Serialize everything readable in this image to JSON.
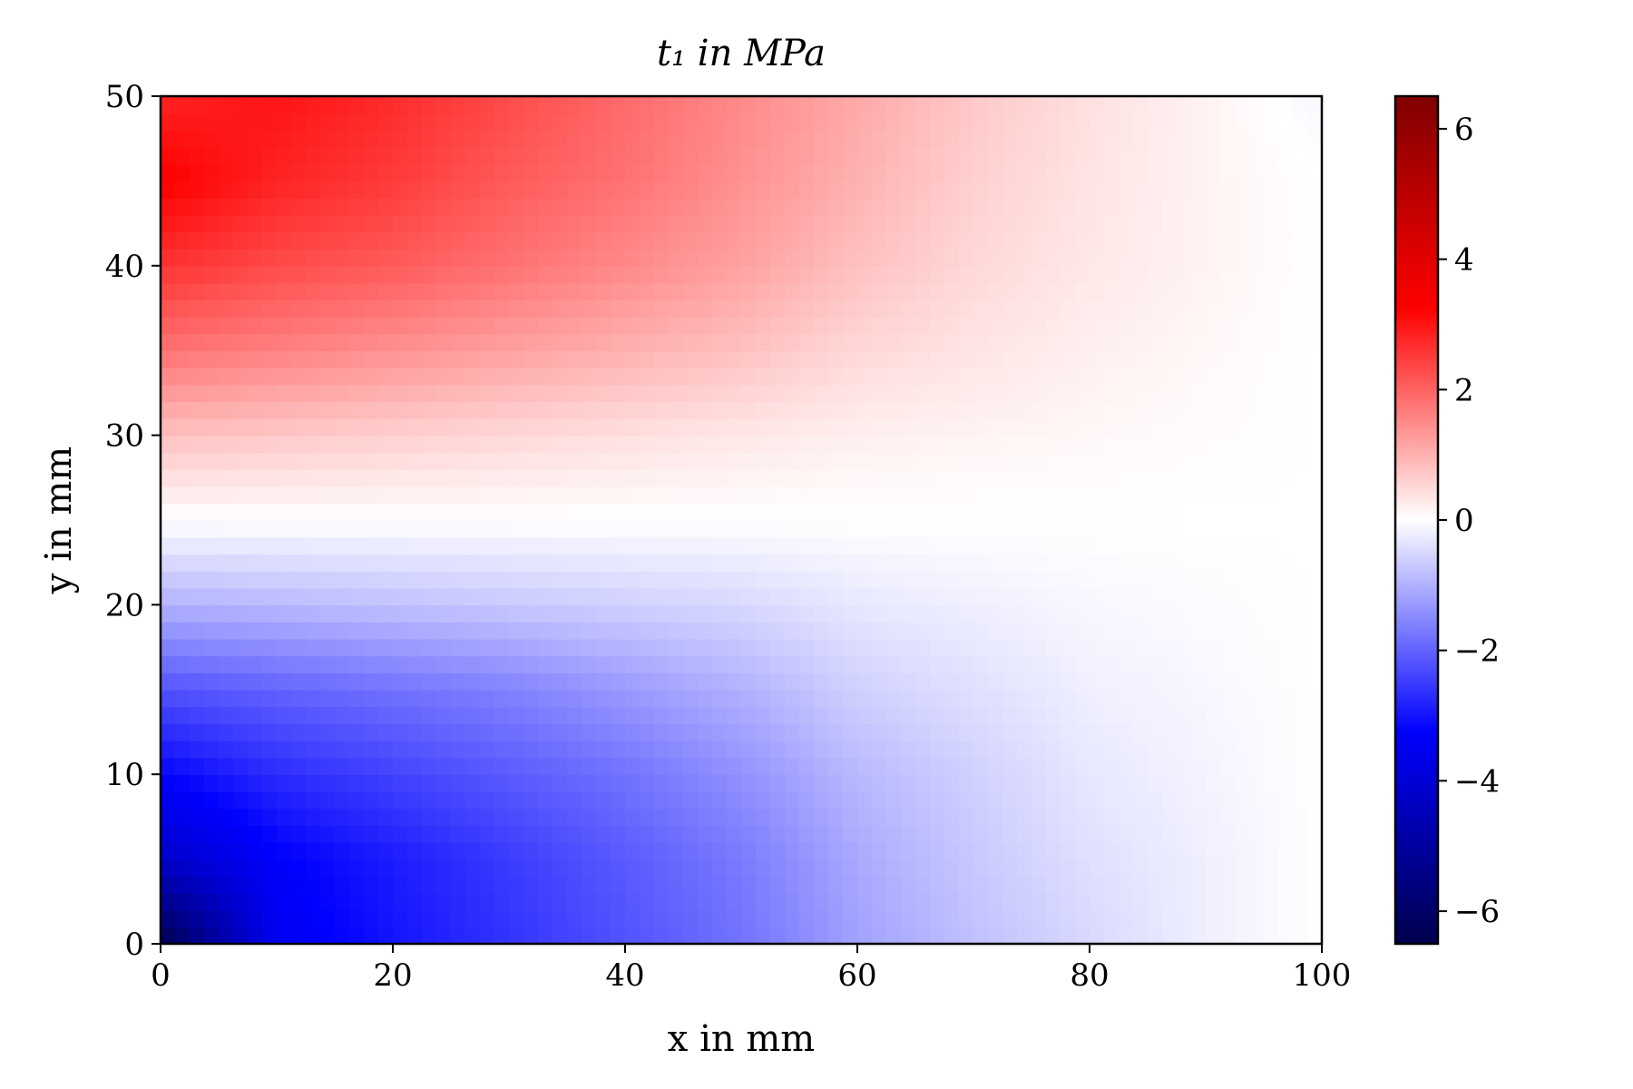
{
  "chart_data": {
    "type": "heatmap",
    "title": "t₁ in MPa",
    "xlabel": "x in mm",
    "ylabel": "y in mm",
    "xlim": [
      0,
      100
    ],
    "ylim": [
      0,
      50
    ],
    "x_ticks": [
      0,
      20,
      40,
      60,
      80,
      100
    ],
    "y_ticks": [
      0,
      10,
      20,
      30,
      40,
      50
    ],
    "colorbar": {
      "colormap": "seismic",
      "range": [
        -6.5,
        6.5
      ],
      "ticks": [
        6,
        4,
        2,
        0,
        -2,
        -4,
        -6
      ],
      "tick_labels": [
        "6",
        "4",
        "2",
        "0",
        "−2",
        "−4",
        "−6"
      ]
    },
    "grid": false,
    "x": [
      0,
      10,
      20,
      30,
      40,
      50,
      60,
      70,
      80,
      90,
      100
    ],
    "y": [
      0,
      5,
      10,
      15,
      20,
      25,
      30,
      35,
      40,
      45,
      50
    ],
    "z": [
      [
        -6.5,
        -3.5,
        -3.0,
        -2.6,
        -2.2,
        -1.8,
        -1.2,
        -0.8,
        -0.5,
        -0.2,
        0.0
      ],
      [
        -4.2,
        -3.3,
        -2.9,
        -2.5,
        -2.1,
        -1.7,
        -1.1,
        -0.7,
        -0.4,
        -0.2,
        0.0
      ],
      [
        -3.2,
        -2.7,
        -2.4,
        -2.1,
        -1.8,
        -1.4,
        -0.9,
        -0.6,
        -0.3,
        -0.15,
        0.0
      ],
      [
        -2.2,
        -2.0,
        -1.8,
        -1.6,
        -1.3,
        -1.0,
        -0.6,
        -0.4,
        -0.2,
        -0.1,
        0.0
      ],
      [
        -1.0,
        -0.9,
        -0.8,
        -0.7,
        -0.6,
        -0.5,
        -0.3,
        -0.2,
        -0.1,
        -0.05,
        0.0
      ],
      [
        0.0,
        0.0,
        0.0,
        0.0,
        0.0,
        0.0,
        0.0,
        0.0,
        0.0,
        0.0,
        0.0
      ],
      [
        0.8,
        0.7,
        0.6,
        0.5,
        0.4,
        0.3,
        0.2,
        0.15,
        0.1,
        0.05,
        0.0
      ],
      [
        1.8,
        1.6,
        1.4,
        1.2,
        1.0,
        0.8,
        0.5,
        0.35,
        0.2,
        0.1,
        0.0
      ],
      [
        2.6,
        2.3,
        2.1,
        1.8,
        1.5,
        1.2,
        0.8,
        0.5,
        0.3,
        0.15,
        0.0
      ],
      [
        3.3,
        2.8,
        2.5,
        2.1,
        1.8,
        1.4,
        1.0,
        0.6,
        0.35,
        0.15,
        0.0
      ],
      [
        2.8,
        3.0,
        2.7,
        2.3,
        1.9,
        1.5,
        1.1,
        0.7,
        0.4,
        0.15,
        -0.1
      ]
    ]
  }
}
